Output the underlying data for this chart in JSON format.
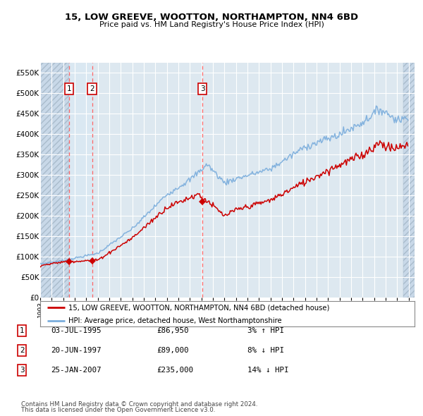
{
  "title": "15, LOW GREEVE, WOOTTON, NORTHAMPTON, NN4 6BD",
  "subtitle": "Price paid vs. HM Land Registry's House Price Index (HPI)",
  "legend_property": "15, LOW GREEVE, WOOTTON, NORTHAMPTON, NN4 6BD (detached house)",
  "legend_hpi": "HPI: Average price, detached house, West Northamptonshire",
  "footer1": "Contains HM Land Registry data © Crown copyright and database right 2024.",
  "footer2": "This data is licensed under the Open Government Licence v3.0.",
  "transactions": [
    {
      "num": 1,
      "date": "03-JUL-1995",
      "price": 86950,
      "pct": "3%",
      "dir": "↑",
      "year": 1995.5
    },
    {
      "num": 2,
      "date": "20-JUN-1997",
      "price": 89000,
      "pct": "8%",
      "dir": "↓",
      "year": 1997.5
    },
    {
      "num": 3,
      "date": "25-JAN-2007",
      "price": 235000,
      "pct": "14%",
      "dir": "↓",
      "year": 2007.08
    }
  ],
  "property_color": "#cc0000",
  "hpi_color": "#7aaddc",
  "vline_color": "#ff6666",
  "ylim": [
    0,
    575000
  ],
  "xlim_start": 1993.0,
  "xlim_end": 2025.5,
  "hatch_end": 2024.5,
  "yticks": [
    0,
    50000,
    100000,
    150000,
    200000,
    250000,
    300000,
    350000,
    400000,
    450000,
    500000,
    550000
  ],
  "plot_bg_color": "#dde8f0",
  "grid_color": "#ffffff",
  "hatch_facecolor": "#c8d8e8",
  "hatch_edgecolor": "#aabccc"
}
